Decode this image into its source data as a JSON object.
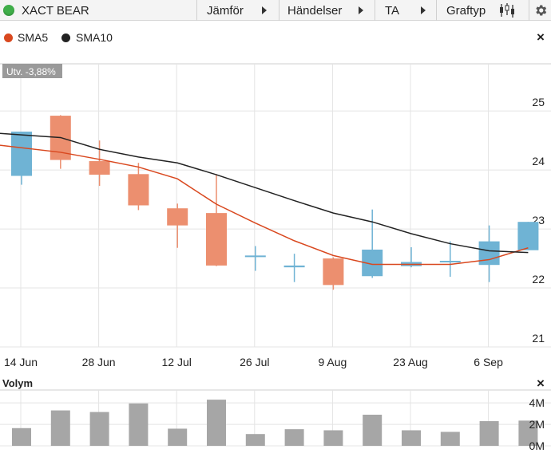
{
  "toolbar": {
    "instrument": "XACT BEAR",
    "menu_compare": "Jämför",
    "menu_events": "Händelser",
    "menu_ta": "TA",
    "menu_charttype": "Graftyp",
    "status_color": "#3fae49"
  },
  "legend": {
    "sma5_label": "SMA5",
    "sma5_color": "#d9481f",
    "sma10_label": "SMA10",
    "sma10_color": "#222222",
    "close_icon": "×"
  },
  "change_badge": "Utv. -3,88%",
  "volume_title": "Volym",
  "chart_data": [
    {
      "type": "candlestick",
      "x": [
        "14 Jun",
        "21 Jun",
        "28 Jun",
        "5 Jul",
        "12 Jul",
        "19 Jul",
        "26 Jul",
        "2 Aug",
        "9 Aug",
        "16 Aug",
        "23 Aug",
        "30 Aug",
        "6 Sep",
        "13 Sep"
      ],
      "x_tick_labels": [
        "14 Jun",
        "28 Jun",
        "12 Jul",
        "26 Jul",
        "9 Aug",
        "23 Aug",
        "6 Sep"
      ],
      "y_ticks": [
        21,
        22,
        23,
        24,
        25
      ],
      "ylim": [
        21,
        25.8
      ],
      "up_color": "#6fb3d4",
      "down_color": "#ec8f6f",
      "candles": [
        {
          "open": 23.9,
          "high": 24.65,
          "low": 23.75,
          "close": 24.65
        },
        {
          "open": 24.92,
          "high": 24.93,
          "low": 24.02,
          "close": 24.17
        },
        {
          "open": 24.15,
          "high": 24.5,
          "low": 23.73,
          "close": 23.92
        },
        {
          "open": 23.93,
          "high": 24.12,
          "low": 23.32,
          "close": 23.4
        },
        {
          "open": 23.35,
          "high": 23.43,
          "low": 22.68,
          "close": 23.06
        },
        {
          "open": 23.27,
          "high": 23.93,
          "low": 22.37,
          "close": 22.38
        },
        {
          "open": 22.55,
          "high": 22.71,
          "low": 22.29,
          "close": 22.55
        },
        {
          "open": 22.35,
          "high": 22.58,
          "low": 22.1,
          "close": 22.38
        },
        {
          "open": 22.5,
          "high": 22.52,
          "low": 21.97,
          "close": 22.05
        },
        {
          "open": 22.2,
          "high": 23.33,
          "low": 22.17,
          "close": 22.65
        },
        {
          "open": 22.37,
          "high": 22.69,
          "low": 22.35,
          "close": 22.44
        },
        {
          "open": 22.44,
          "high": 22.79,
          "low": 22.19,
          "close": 22.46
        },
        {
          "open": 22.39,
          "high": 23.06,
          "low": 22.1,
          "close": 22.79
        },
        {
          "open": 22.64,
          "high": 23.12,
          "low": 22.64,
          "close": 23.12
        }
      ],
      "series": [
        {
          "name": "SMA5",
          "color": "#d9481f",
          "values": [
            24.42,
            24.3,
            24.18,
            24.05,
            23.85,
            23.42,
            23.1,
            22.8,
            22.55,
            22.4,
            22.4,
            22.4,
            22.48,
            22.68
          ]
        },
        {
          "name": "SMA10",
          "color": "#222222",
          "values": [
            24.62,
            24.55,
            24.35,
            24.22,
            24.12,
            23.92,
            23.7,
            23.48,
            23.27,
            23.12,
            22.92,
            22.75,
            22.63,
            22.6
          ]
        }
      ]
    },
    {
      "type": "bar",
      "title": "Volym",
      "y_ticks": [
        "4M",
        "2M",
        "0M"
      ],
      "ylim": [
        0,
        5.2
      ],
      "color": "#a6a6a6",
      "values": [
        1.65,
        3.3,
        3.15,
        3.95,
        1.6,
        4.3,
        1.1,
        1.55,
        1.45,
        2.9,
        1.45,
        1.3,
        2.3,
        2.35
      ]
    }
  ]
}
